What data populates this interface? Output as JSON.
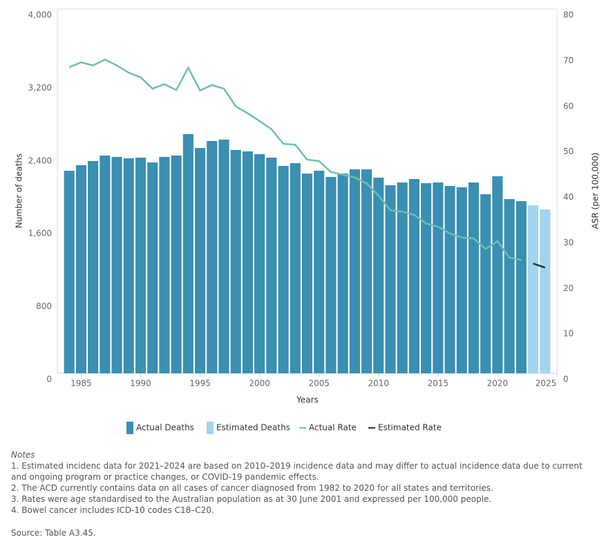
{
  "chart_data": {
    "type": "bar",
    "x_label": "Years",
    "y_label": "Number of deaths",
    "y2_label": "ASR (per 100,000)",
    "x": [
      1984,
      1985,
      1986,
      1987,
      1988,
      1989,
      1990,
      1991,
      1992,
      1993,
      1994,
      1995,
      1996,
      1997,
      1998,
      1999,
      2000,
      2001,
      2002,
      2003,
      2004,
      2005,
      2006,
      2007,
      2008,
      2009,
      2010,
      2011,
      2012,
      2013,
      2014,
      2015,
      2016,
      2017,
      2018,
      2019,
      2020,
      2021,
      2022,
      2023,
      2024
    ],
    "series": [
      {
        "name": "Actual Deaths",
        "type": "bar",
        "color": "#3a8fb2",
        "values": [
          2224,
          2285,
          2330,
          2391,
          2376,
          2360,
          2368,
          2315,
          2376,
          2391,
          2626,
          2474,
          2550,
          2566,
          2452,
          2436,
          2406,
          2368,
          2277,
          2307,
          2193,
          2224,
          2156,
          2193,
          2239,
          2239,
          2148,
          2064,
          2095,
          2133,
          2087,
          2095,
          2057,
          2042,
          2095,
          1966,
          2163,
          1913,
          1890,
          null,
          null
        ]
      },
      {
        "name": "Estimated Deaths",
        "type": "bar",
        "color": "#a3d4ee",
        "values": [
          null,
          null,
          null,
          null,
          null,
          null,
          null,
          null,
          null,
          null,
          null,
          null,
          null,
          null,
          null,
          null,
          null,
          null,
          null,
          null,
          null,
          null,
          null,
          null,
          null,
          null,
          null,
          null,
          null,
          null,
          null,
          null,
          null,
          null,
          null,
          null,
          null,
          null,
          null,
          1844,
          1799
        ]
      },
      {
        "name": "Actual Rate",
        "type": "line",
        "axis": "y2",
        "color": "#6dbfb3",
        "values": [
          67.2,
          68.3,
          67.6,
          68.9,
          67.6,
          66.0,
          65.0,
          62.5,
          63.5,
          62.2,
          67.1,
          62.1,
          63.3,
          62.5,
          58.6,
          57.1,
          55.4,
          53.6,
          50.4,
          50.2,
          46.9,
          46.6,
          44.2,
          43.6,
          43.0,
          41.7,
          39.0,
          35.8,
          35.5,
          34.8,
          32.9,
          32.2,
          30.7,
          29.8,
          29.6,
          27.3,
          29.0,
          25.4,
          24.9,
          null,
          null
        ]
      },
      {
        "name": "Estimated Rate",
        "type": "line",
        "axis": "y2",
        "color": "#1d3447",
        "values": [
          null,
          null,
          null,
          null,
          null,
          null,
          null,
          null,
          null,
          null,
          null,
          null,
          null,
          null,
          null,
          null,
          null,
          null,
          null,
          null,
          null,
          null,
          null,
          null,
          null,
          null,
          null,
          null,
          null,
          null,
          null,
          null,
          null,
          null,
          null,
          null,
          null,
          null,
          null,
          24.1,
          23.2
        ]
      }
    ],
    "xlim": [
      1983,
      2025
    ],
    "xticks": [
      1985,
      1990,
      1995,
      2000,
      2005,
      2010,
      2015,
      2020,
      2025
    ],
    "ylim": [
      0,
      4000
    ],
    "yticks": [
      0,
      800,
      {
        "value": 1600,
        "label": "1,600"
      },
      {
        "value": 2400,
        "label": "2,400"
      },
      {
        "value": 3200,
        "label": "3,200"
      },
      {
        "value": 4000,
        "label": "4,000"
      }
    ],
    "y2lim": [
      0,
      80
    ],
    "y2ticks": [
      0,
      10,
      20,
      30,
      40,
      50,
      60,
      70,
      80
    ],
    "grid": false,
    "legend": "bottom"
  },
  "notes": {
    "heading": "Notes",
    "items": [
      "1. Estimated incidenc data for 2021–2024 are based on 2010–2019 incidence data and may differ to actual incidence data due to current and ongoing program or practice changes, or COVID-19 pandemic effects.",
      "2. The ACD currently contains data on all cases of cancer diagnosed from 1982 to 2020 for all states and territories.",
      "3. Rates were age standardised to the Australian population as at 30 June 2001 and expressed per 100,000 people.",
      "4. Bowel cancer includes ICD-10 codes C18–C20."
    ]
  },
  "source": "Source: Table A3.45."
}
